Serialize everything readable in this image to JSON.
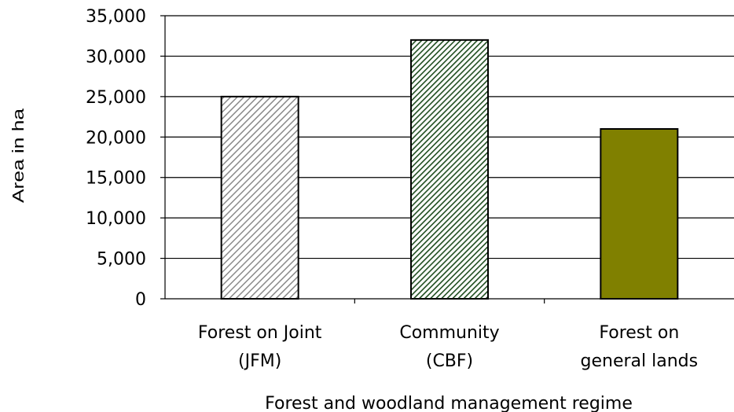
{
  "chart_data": {
    "type": "bar",
    "categories": [
      [
        "Forest on Joint",
        "(JFM)"
      ],
      [
        "Community",
        "(CBF)"
      ],
      [
        "Forest on",
        "general lands"
      ]
    ],
    "values": [
      25000,
      32000,
      21000
    ],
    "title": "",
    "xlabel": "Forest and woodland management regime",
    "ylabel": "Area in ha",
    "ylim": [
      0,
      35000
    ],
    "yticks": [
      0,
      5000,
      10000,
      15000,
      20000,
      25000,
      30000,
      35000
    ],
    "ytick_labels": [
      "0",
      "5,000",
      "10,000",
      "15,000",
      "20,000",
      "25,000",
      "30,000",
      "35,000"
    ],
    "grid": true,
    "legend": "none",
    "bar_styles": [
      {
        "fill": "#ffffff",
        "hatch": "#8a8a8a",
        "pattern": "diagonal-hatch-light"
      },
      {
        "fill": "#ffffff",
        "hatch": "#1f4d1f",
        "pattern": "diagonal-hatch-dark-green"
      },
      {
        "fill": "#808000",
        "hatch": "",
        "pattern": "solid-olive"
      }
    ]
  }
}
